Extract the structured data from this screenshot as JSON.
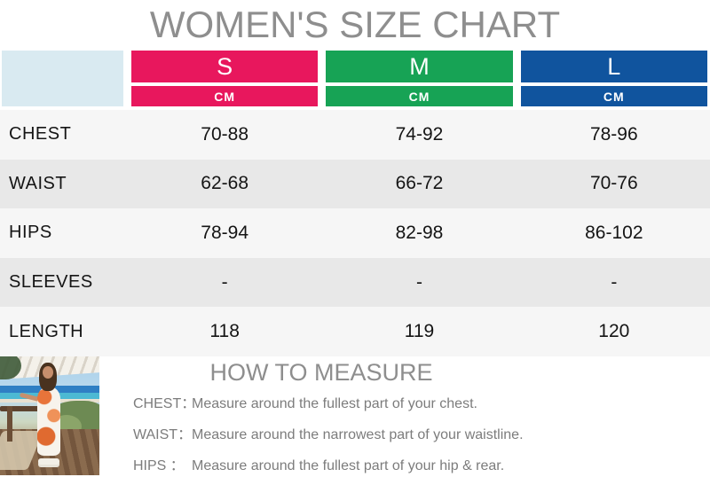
{
  "title": "WOMEN'S SIZE CHART",
  "colors": {
    "size_s": "#e8175d",
    "size_m": "#17a355",
    "size_l": "#10549e",
    "corner_cell": "#d9eaf1",
    "row_light": "#f6f6f6",
    "row_dark": "#e8e8e8",
    "title_gray": "#8e8e8e"
  },
  "table": {
    "sizes": [
      {
        "label": "S",
        "unit": "CM"
      },
      {
        "label": "M",
        "unit": "CM"
      },
      {
        "label": "L",
        "unit": "CM"
      }
    ],
    "rows": [
      {
        "label": "CHEST",
        "values": [
          "70-88",
          "74-92",
          "78-96"
        ]
      },
      {
        "label": "WAIST",
        "values": [
          "62-68",
          "66-72",
          "70-76"
        ]
      },
      {
        "label": "HIPS",
        "values": [
          "78-94",
          "82-98",
          "86-102"
        ]
      },
      {
        "label": "SLEEVES",
        "values": [
          "-",
          "-",
          "-"
        ]
      },
      {
        "label": "LENGTH",
        "values": [
          "118",
          "119",
          "120"
        ]
      }
    ]
  },
  "measure": {
    "title": "HOW TO MEASURE",
    "items": [
      {
        "label": "CHEST：",
        "text": "Measure around the fullest part of your chest."
      },
      {
        "label": "WAIST：",
        "text": "Measure around the narrowest part of your waistline."
      },
      {
        "label": "HIPS ：",
        "text": "Measure around the fullest part of your hip & rear."
      }
    ]
  }
}
